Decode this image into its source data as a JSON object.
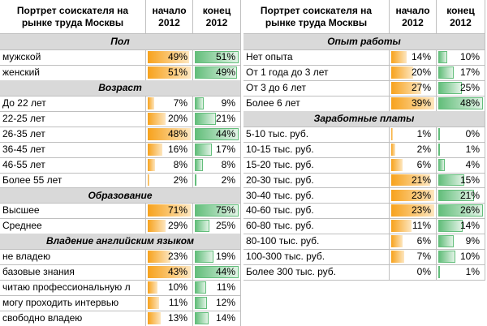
{
  "left": {
    "header": {
      "label": "Портрет соискателя на рынке труда Москвы",
      "start": "начало 2012",
      "end": "конец 2012"
    },
    "sections": [
      {
        "title": "Пол",
        "rows": [
          {
            "label": "мужской",
            "start": "49%",
            "end": "51%"
          },
          {
            "label": "женский",
            "start": "51%",
            "end": "49%"
          }
        ]
      },
      {
        "title": "Возраст",
        "rows": [
          {
            "label": "До 22 лет",
            "start": "7%",
            "end": "9%"
          },
          {
            "label": "22-25 лет",
            "start": "20%",
            "end": "21%"
          },
          {
            "label": "26-35 лет",
            "start": "48%",
            "end": "44%"
          },
          {
            "label": "36-45 лет",
            "start": "16%",
            "end": "17%"
          },
          {
            "label": "46-55 лет",
            "start": "8%",
            "end": "8%"
          },
          {
            "label": "Более 55 лет",
            "start": "2%",
            "end": "2%"
          }
        ]
      },
      {
        "title": "Образование",
        "rows": [
          {
            "label": "Высшее",
            "start": "71%",
            "end": "75%"
          },
          {
            "label": "Среднее",
            "start": "29%",
            "end": "25%"
          }
        ]
      },
      {
        "title": "Владение английским языком",
        "rows": [
          {
            "label": "не владею",
            "start": "23%",
            "end": "19%"
          },
          {
            "label": "базовые знания",
            "start": "43%",
            "end": "44%"
          },
          {
            "label": "читаю профессиональную л",
            "start": "10%",
            "end": "11%"
          },
          {
            "label": "могу проходить интервью",
            "start": "11%",
            "end": "12%"
          },
          {
            "label": "свободно владею",
            "start": "13%",
            "end": "14%"
          }
        ]
      }
    ]
  },
  "right": {
    "header": {
      "label": "Портрет соискателя на рынке труда Москвы",
      "start": "начало 2012",
      "end": "конец 2012"
    },
    "sections": [
      {
        "title": "Опыт работы",
        "rows": [
          {
            "label": "Нет опыта",
            "start": "14%",
            "end": "10%"
          },
          {
            "label": "От 1 года до 3 лет",
            "start": "20%",
            "end": "17%"
          },
          {
            "label": "От 3 до 6 лет",
            "start": "27%",
            "end": "25%"
          },
          {
            "label": "Более 6 лет",
            "start": "39%",
            "end": "48%"
          }
        ]
      },
      {
        "title": "Заработные платы",
        "rows": [
          {
            "label": "5-10 тыс. руб.",
            "start": "1%",
            "end": "0%"
          },
          {
            "label": "10-15 тыс. руб.",
            "start": "2%",
            "end": "1%"
          },
          {
            "label": "15-20 тыс. руб.",
            "start": "6%",
            "end": "4%"
          },
          {
            "label": "20-30 тыс. руб.",
            "start": "21%",
            "end": "15%"
          },
          {
            "label": "30-40 тыс. руб.",
            "start": "23%",
            "end": "21%"
          },
          {
            "label": "40-60 тыс. руб.",
            "start": "23%",
            "end": "26%"
          },
          {
            "label": "60-80 тыс. руб.",
            "start": "11%",
            "end": "14%"
          },
          {
            "label": "80-100 тыс. руб.",
            "start": "6%",
            "end": "9%"
          },
          {
            "label": "100-300 тыс. руб.",
            "start": "7%",
            "end": "10%"
          },
          {
            "label": "Более 300 тыс. руб.",
            "start": "0%",
            "end": "1%"
          }
        ]
      }
    ]
  }
}
